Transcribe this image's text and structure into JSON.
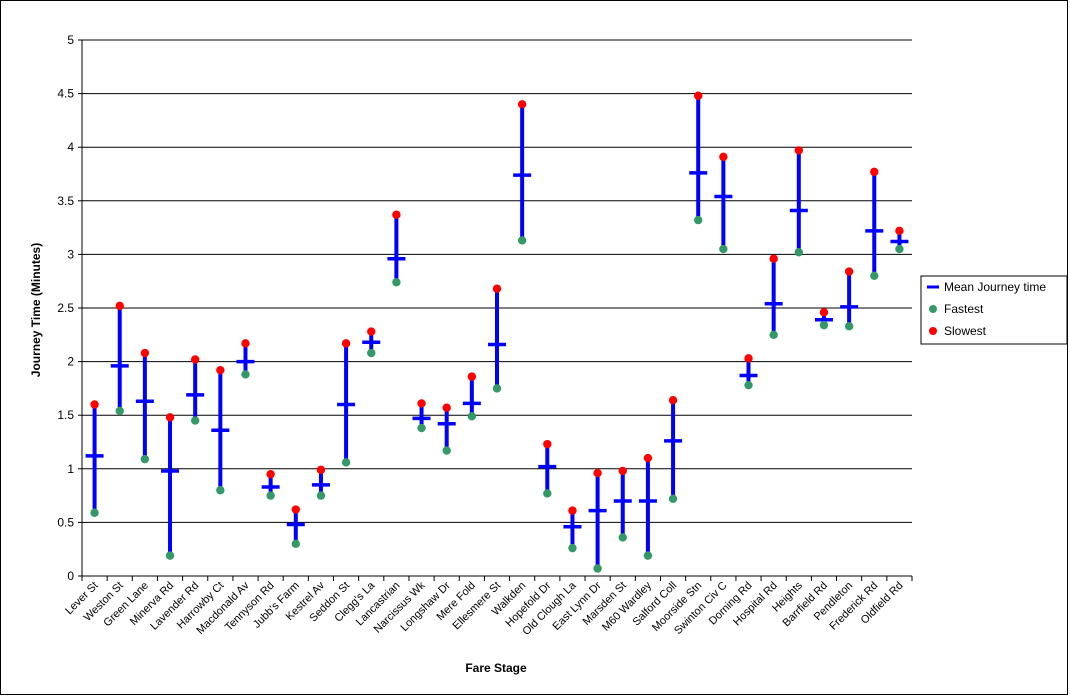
{
  "chart_data": {
    "type": "scatter",
    "title": "",
    "xlabel": "Fare Stage",
    "ylabel": "Journey Time (Minutes)",
    "ylim": [
      0,
      5
    ],
    "yticks": [
      "0",
      "0.5",
      "1",
      "1.5",
      "2",
      "2.5",
      "3",
      "3.5",
      "4",
      "4.5",
      "5"
    ],
    "grid": true,
    "legend_position": "right",
    "categories": [
      "Lever St",
      "Weston St",
      "Green Lane",
      "Minerva Rd",
      "Lavender Rd",
      "Harrowby Ct",
      "Macdonald Av",
      "Tennyson Rd",
      "Jubb's Farm",
      "Kestrel Av",
      "Seddon St",
      "Clegg's La",
      "Lancastrian",
      "Narcissus Wk",
      "Longshaw Dr",
      "Mere Fold",
      "Ellesmere St",
      "Walkden",
      "Hopefold Dr",
      "Old Clough La",
      "East Lynn Dr",
      "Marsden St",
      "M60 Wardley",
      "Salford Coll",
      "Moorside Stn",
      "Swinton Civ C",
      "Dorning Rd",
      "Hospital Rd",
      "Heights",
      "Barrfield Rd",
      "Pendleton",
      "Frederick Rd",
      "Oldfield Rd"
    ],
    "series": [
      {
        "name": "Mean Journey time",
        "color": "#0000ff",
        "values": [
          1.12,
          1.96,
          1.63,
          0.98,
          1.69,
          1.36,
          2.0,
          0.83,
          0.48,
          0.85,
          1.6,
          2.18,
          2.96,
          1.47,
          1.42,
          1.61,
          2.16,
          3.74,
          1.02,
          0.46,
          0.61,
          0.7,
          0.7,
          1.26,
          3.76,
          3.54,
          1.87,
          2.54,
          3.41,
          2.39,
          2.51,
          3.22,
          3.12
        ]
      },
      {
        "name": "Fastest",
        "color": "#339966",
        "values": [
          0.59,
          1.54,
          1.09,
          0.19,
          1.45,
          0.8,
          1.88,
          0.75,
          0.3,
          0.75,
          1.06,
          2.08,
          2.74,
          1.38,
          1.17,
          1.49,
          1.75,
          3.13,
          0.77,
          0.26,
          0.07,
          0.36,
          0.19,
          0.72,
          3.32,
          3.05,
          1.78,
          2.25,
          3.02,
          2.34,
          2.33,
          2.8,
          3.05
        ]
      },
      {
        "name": "Slowest",
        "color": "#ff0000",
        "values": [
          1.6,
          2.52,
          2.08,
          1.48,
          2.02,
          1.92,
          2.17,
          0.95,
          0.62,
          0.99,
          2.17,
          2.28,
          3.37,
          1.61,
          1.57,
          1.86,
          2.68,
          4.4,
          1.23,
          0.61,
          0.96,
          0.98,
          1.1,
          1.64,
          4.48,
          3.91,
          2.03,
          2.96,
          3.97,
          2.46,
          2.84,
          3.77,
          3.22
        ]
      }
    ]
  }
}
